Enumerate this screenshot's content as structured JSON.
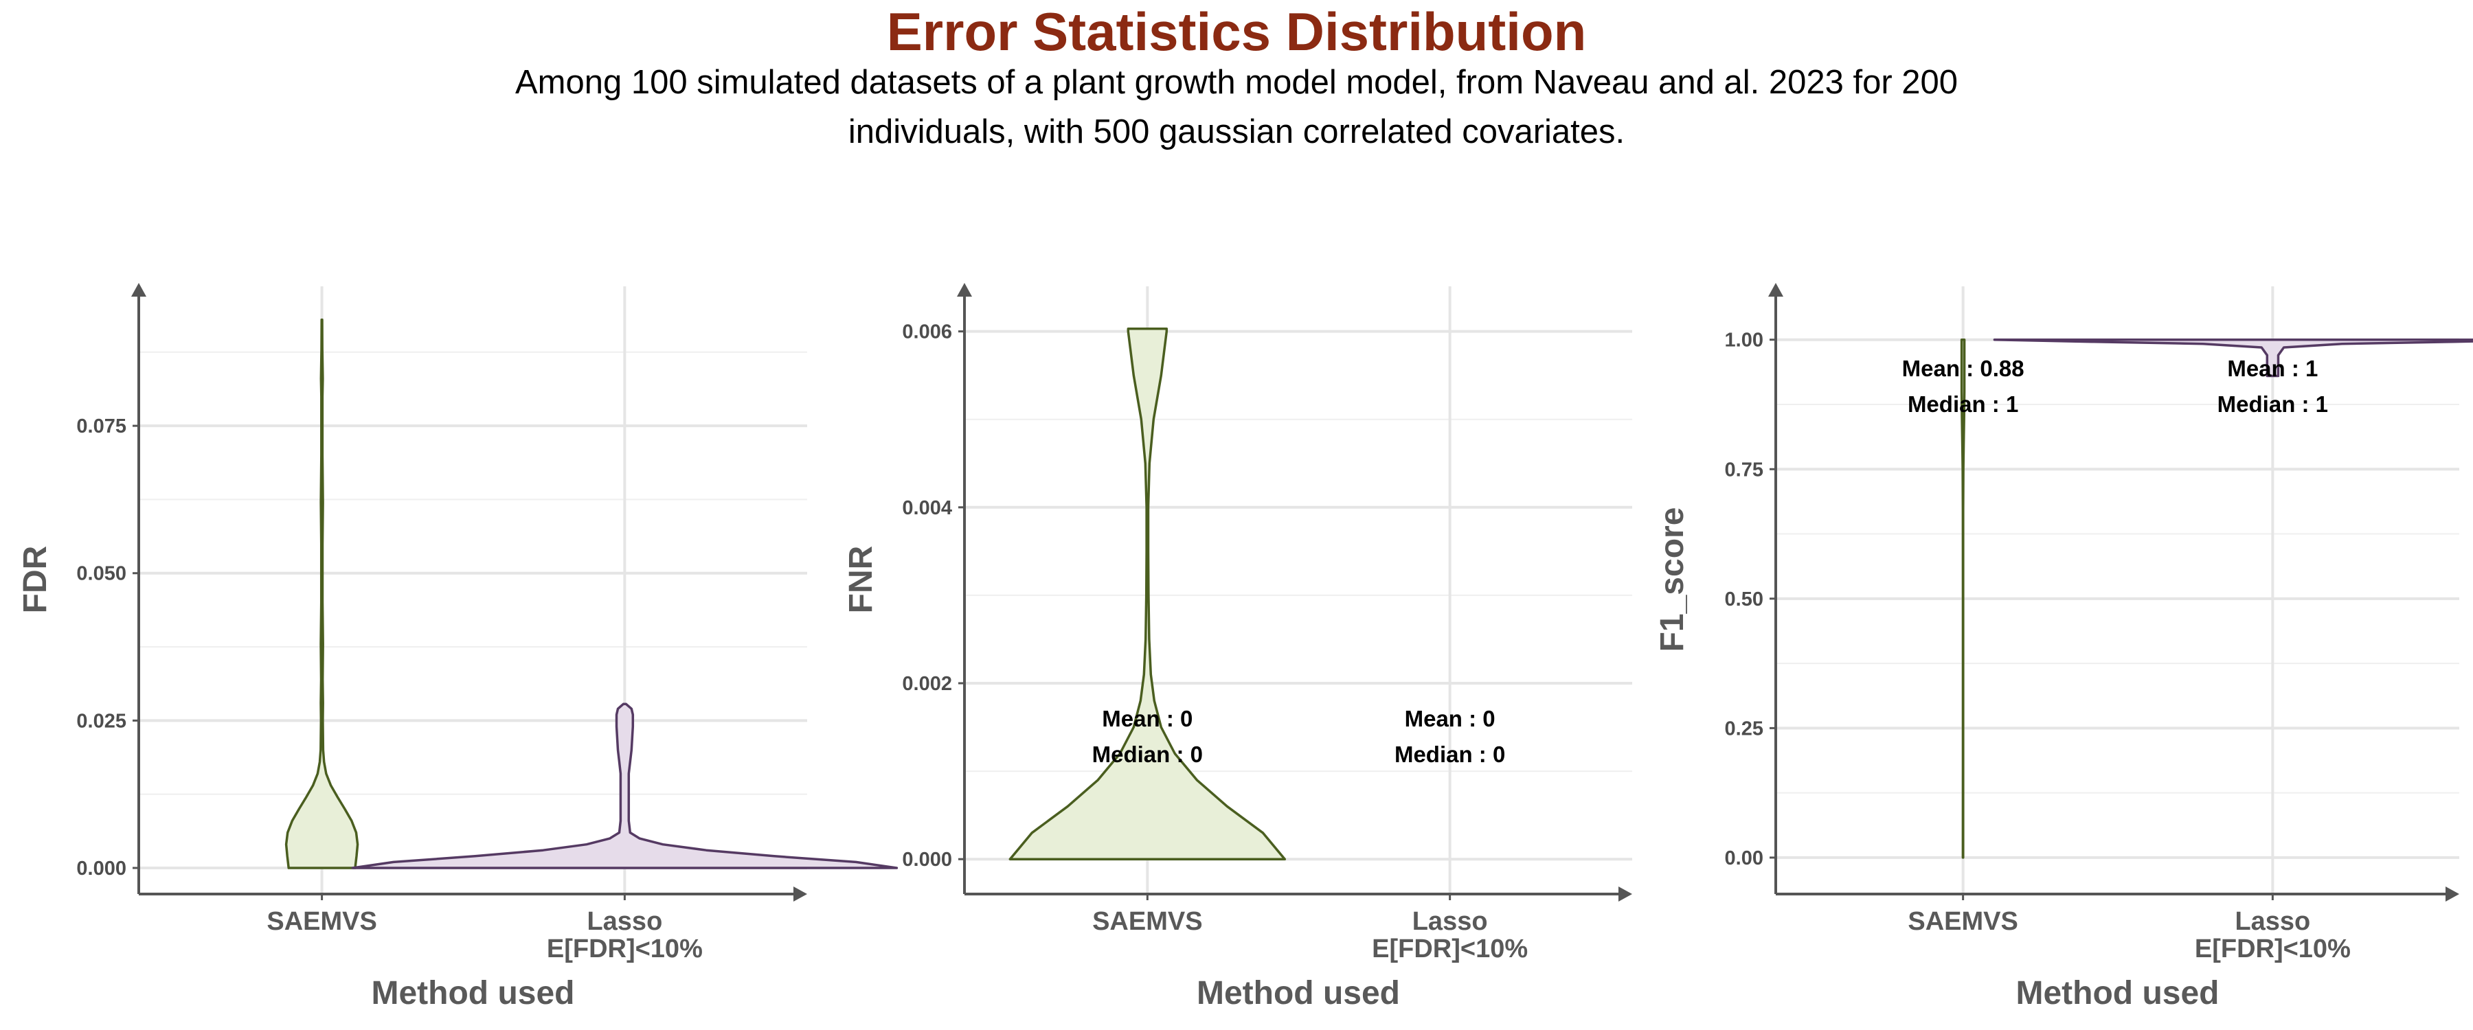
{
  "title": "Error Statistics Distribution",
  "subtitle_lines": [
    "Among 100 simulated datasets of a plant growth model model, from Naveau and al. 2023 for 200",
    "individuals, with 500 gaussian correlated covariates."
  ],
  "colors": {
    "title": "#8b2a12",
    "saemvs_fill": "#e8efd8",
    "saemvs_stroke": "#4a5e1f",
    "lasso_fill": "#e6dcea",
    "lasso_stroke": "#553a63",
    "axis": "#555555",
    "grid": "#e5e5e5"
  },
  "chart_data": [
    {
      "type": "violin",
      "ylabel": "FDR",
      "xlabel": "Method used",
      "ylim": [
        0,
        0.094
      ],
      "yticks": [
        0,
        0.025,
        0.05,
        0.075
      ],
      "ytick_labels": [
        "0.000",
        "0.025",
        "0.050",
        "0.075"
      ],
      "categories": [
        [
          "SAEMVS"
        ],
        [
          "Lasso",
          "E[FDR]<10%"
        ]
      ],
      "series": [
        {
          "profile": [
            [
              0,
              0.93
            ],
            [
              0.002,
              0.97
            ],
            [
              0.004,
              1.0
            ],
            [
              0.006,
              0.96
            ],
            [
              0.008,
              0.83
            ],
            [
              0.01,
              0.64
            ],
            [
              0.012,
              0.44
            ],
            [
              0.014,
              0.25
            ],
            [
              0.016,
              0.12
            ],
            [
              0.018,
              0.06
            ],
            [
              0.02,
              0.035
            ],
            [
              0.025,
              0.025
            ],
            [
              0.028,
              0.03
            ],
            [
              0.032,
              0.022
            ],
            [
              0.038,
              0.03
            ],
            [
              0.045,
              0.018
            ],
            [
              0.055,
              0.018
            ],
            [
              0.062,
              0.028
            ],
            [
              0.07,
              0.015
            ],
            [
              0.08,
              0.015
            ],
            [
              0.083,
              0.025
            ],
            [
              0.088,
              0.012
            ],
            [
              0.093,
              0.008
            ]
          ],
          "annotation": null
        },
        {
          "profile": [
            [
              0,
              1.0
            ],
            [
              0.001,
              0.85
            ],
            [
              0.002,
              0.55
            ],
            [
              0.003,
              0.3
            ],
            [
              0.004,
              0.14
            ],
            [
              0.005,
              0.055
            ],
            [
              0.006,
              0.02
            ],
            [
              0.008,
              0.015
            ],
            [
              0.012,
              0.015
            ],
            [
              0.016,
              0.015
            ],
            [
              0.018,
              0.02
            ],
            [
              0.02,
              0.025
            ],
            [
              0.024,
              0.03
            ],
            [
              0.026,
              0.03
            ],
            [
              0.027,
              0.025
            ],
            [
              0.0278,
              0.005
            ]
          ],
          "annotation": null
        }
      ]
    },
    {
      "type": "violin",
      "ylabel": "FNR",
      "xlabel": "Method used",
      "ylim": [
        -0.0001,
        0.0062
      ],
      "yticks": [
        0,
        0.002,
        0.004,
        0.006
      ],
      "ytick_labels": [
        "0.000",
        "0.002",
        "0.004",
        "0.006"
      ],
      "categories": [
        [
          "SAEMVS"
        ],
        [
          "Lasso",
          "E[FDR]<10%"
        ]
      ],
      "series": [
        {
          "profile": [
            [
              0,
              1.0
            ],
            [
              0.0003,
              0.84
            ],
            [
              0.0006,
              0.58
            ],
            [
              0.0009,
              0.36
            ],
            [
              0.0012,
              0.2
            ],
            [
              0.0015,
              0.1
            ],
            [
              0.0018,
              0.05
            ],
            [
              0.0021,
              0.025
            ],
            [
              0.0025,
              0.013
            ],
            [
              0.003,
              0.008
            ],
            [
              0.0035,
              0.006
            ],
            [
              0.004,
              0.006
            ],
            [
              0.0045,
              0.015
            ],
            [
              0.005,
              0.045
            ],
            [
              0.0055,
              0.1
            ],
            [
              0.006,
              0.14
            ],
            [
              0.00603,
              0.14
            ]
          ],
          "annotation": [
            "Mean : 0",
            "Median : 0"
          ]
        },
        {
          "profile": [],
          "annotation": [
            "Mean : 0",
            "Median : 0"
          ]
        }
      ]
    },
    {
      "type": "violin",
      "ylabel": "F1_score",
      "xlabel": "Method used",
      "ylim": [
        -0.02,
        1.05
      ],
      "yticks": [
        0,
        0.25,
        0.5,
        0.75,
        1.0
      ],
      "ytick_labels": [
        "0.00",
        "0.25",
        "0.50",
        "0.75",
        "1.00"
      ],
      "categories": [
        [
          "SAEMVS"
        ],
        [
          "Lasso",
          "E[FDR]<10%"
        ]
      ],
      "series": [
        {
          "profile": [
            [
              0,
              0.01
            ],
            [
              0.2,
              0.008
            ],
            [
              0.5,
              0.006
            ],
            [
              0.67,
              0.01
            ],
            [
              0.75,
              0.025
            ],
            [
              0.8,
              0.05
            ],
            [
              0.85,
              0.08
            ],
            [
              0.9,
              0.1
            ],
            [
              0.95,
              0.1
            ],
            [
              1.0,
              0.1
            ]
          ],
          "annotation": [
            "Mean : 0.88",
            "Median : 1"
          ]
        },
        {
          "profile": [
            [
              0.93,
              0.02
            ],
            [
              0.95,
              0.02
            ],
            [
              0.97,
              0.02
            ],
            [
              0.985,
              0.04
            ],
            [
              0.992,
              0.25
            ],
            [
              0.996,
              0.65
            ],
            [
              1.0,
              1.0
            ]
          ],
          "annotation": [
            "Mean : 1",
            "Median : 1"
          ]
        }
      ]
    }
  ]
}
